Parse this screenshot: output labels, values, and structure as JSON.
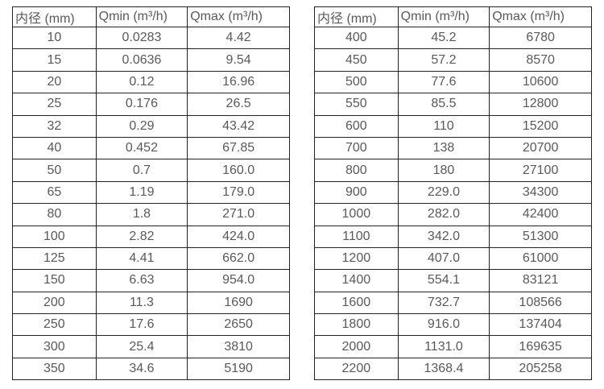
{
  "colors": {
    "text": "#595959",
    "border": "#222222",
    "background": "#ffffff"
  },
  "tables": [
    {
      "id": "small-diameters",
      "headers": [
        "内径 (mm)",
        "Qmin (m³/h)",
        "Qmax (m³/h)"
      ],
      "rows": [
        [
          "10",
          "0.0283",
          "4.42"
        ],
        [
          "15",
          "0.0636",
          "9.54"
        ],
        [
          "20",
          "0.12",
          "16.96"
        ],
        [
          "25",
          "0.176",
          "26.5"
        ],
        [
          "32",
          "0.29",
          "43.42"
        ],
        [
          "40",
          "0.452",
          "67.85"
        ],
        [
          "50",
          "0.7",
          "160.0"
        ],
        [
          "65",
          "1.19",
          "179.0"
        ],
        [
          "80",
          "1.8",
          "271.0"
        ],
        [
          "100",
          "2.82",
          "424.0"
        ],
        [
          "125",
          "4.41",
          "662.0"
        ],
        [
          "150",
          "6.63",
          "954.0"
        ],
        [
          "200",
          "11.3",
          "1690"
        ],
        [
          "250",
          "17.6",
          "2650"
        ],
        [
          "300",
          "25.4",
          "3810"
        ],
        [
          "350",
          "34.6",
          "5190"
        ]
      ]
    },
    {
      "id": "large-diameters",
      "headers": [
        "内径 (mm)",
        "Qmin (m³/h)",
        "Qmax (m³/h)"
      ],
      "rows": [
        [
          "400",
          "45.2",
          "6780"
        ],
        [
          "450",
          "57.2",
          "8570"
        ],
        [
          "500",
          "77.6",
          "10600"
        ],
        [
          "550",
          "85.5",
          "12800"
        ],
        [
          "600",
          "110",
          "15200"
        ],
        [
          "700",
          "138",
          "20700"
        ],
        [
          "800",
          "180",
          "27100"
        ],
        [
          "900",
          "229.0",
          "34300"
        ],
        [
          "1000",
          "282.0",
          "42400"
        ],
        [
          "1100",
          "342.0",
          "51300"
        ],
        [
          "1200",
          "407.0",
          "61000"
        ],
        [
          "1400",
          "554.1",
          "83121"
        ],
        [
          "1600",
          "732.7",
          "108566"
        ],
        [
          "1800",
          "916.0",
          "137404"
        ],
        [
          "2000",
          "1131.0",
          "169635"
        ],
        [
          "2200",
          "1368.4",
          "205258"
        ]
      ]
    }
  ]
}
